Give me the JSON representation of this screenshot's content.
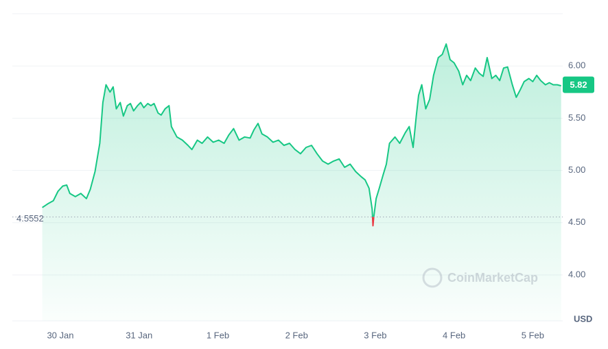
{
  "chart_data": {
    "type": "line",
    "series": [
      {
        "color": "#16c784",
        "below_color": "#ea3943",
        "x": [
          29.77,
          29.84,
          29.91,
          29.97,
          30.03,
          30.08,
          30.12,
          30.19,
          30.26,
          30.33,
          30.38,
          30.44,
          30.5,
          30.54,
          30.58,
          30.63,
          30.67,
          30.71,
          30.76,
          30.8,
          30.85,
          30.89,
          30.93,
          30.98,
          31.02,
          31.06,
          31.11,
          31.15,
          31.19,
          31.24,
          31.28,
          31.33,
          31.38,
          31.41,
          31.48,
          31.55,
          31.62,
          31.67,
          31.74,
          31.8,
          31.87,
          31.94,
          32.01,
          32.08,
          32.14,
          32.2,
          32.27,
          32.34,
          32.41,
          32.46,
          32.51,
          32.56,
          32.63,
          32.7,
          32.77,
          32.84,
          32.91,
          32.98,
          33.05,
          33.12,
          33.19,
          33.26,
          33.33,
          33.4,
          33.47,
          33.54,
          33.61,
          33.68,
          33.75,
          33.82,
          33.87,
          33.92,
          33.96,
          33.97,
          33.98,
          34.01,
          34.05,
          34.1,
          34.14,
          34.18,
          34.25,
          34.31,
          34.38,
          34.43,
          34.48,
          34.52,
          34.55,
          34.59,
          34.64,
          34.69,
          34.74,
          34.8,
          34.85,
          34.9,
          34.95,
          35.0,
          35.06,
          35.11,
          35.16,
          35.21,
          35.27,
          35.32,
          35.37,
          35.42,
          35.48,
          35.53,
          35.58,
          35.63,
          35.68,
          35.74,
          35.79,
          35.84,
          35.89,
          35.95,
          36.0,
          36.05,
          36.1,
          36.16,
          36.21,
          36.26,
          36.31,
          36.36
        ],
        "values": [
          4.645,
          4.68,
          4.71,
          4.8,
          4.85,
          4.86,
          4.78,
          4.75,
          4.78,
          4.73,
          4.82,
          4.99,
          5.26,
          5.65,
          5.82,
          5.75,
          5.8,
          5.59,
          5.65,
          5.52,
          5.62,
          5.64,
          5.57,
          5.62,
          5.65,
          5.6,
          5.64,
          5.62,
          5.64,
          5.55,
          5.53,
          5.59,
          5.62,
          5.42,
          5.32,
          5.29,
          5.24,
          5.2,
          5.29,
          5.26,
          5.32,
          5.27,
          5.29,
          5.26,
          5.34,
          5.4,
          5.29,
          5.32,
          5.31,
          5.39,
          5.45,
          5.35,
          5.32,
          5.27,
          5.29,
          5.24,
          5.26,
          5.2,
          5.16,
          5.22,
          5.24,
          5.16,
          5.09,
          5.06,
          5.09,
          5.11,
          5.03,
          5.06,
          4.99,
          4.94,
          4.91,
          4.83,
          4.63,
          4.47,
          4.55,
          4.73,
          4.83,
          4.96,
          5.06,
          5.26,
          5.32,
          5.26,
          5.36,
          5.42,
          5.22,
          5.52,
          5.72,
          5.82,
          5.59,
          5.68,
          5.91,
          6.08,
          6.11,
          6.21,
          6.06,
          6.03,
          5.95,
          5.82,
          5.91,
          5.86,
          5.98,
          5.93,
          5.9,
          6.08,
          5.88,
          5.91,
          5.86,
          5.98,
          5.99,
          5.82,
          5.7,
          5.77,
          5.85,
          5.88,
          5.85,
          5.91,
          5.86,
          5.82,
          5.84,
          5.82,
          5.82,
          5.81
        ]
      }
    ],
    "xlim": [
      29.39,
      36.38
    ],
    "xticks": [
      {
        "value": 30,
        "label": "30 Jan"
      },
      {
        "value": 31,
        "label": "31 Jan"
      },
      {
        "value": 32,
        "label": "1 Feb"
      },
      {
        "value": 33,
        "label": "2 Feb"
      },
      {
        "value": 34,
        "label": "3 Feb"
      },
      {
        "value": 35,
        "label": "4 Feb"
      },
      {
        "value": 36,
        "label": "5 Feb"
      }
    ],
    "ylim": [
      3.56,
      6.5
    ],
    "yticks": [
      {
        "value": 4,
        "label": "4.00"
      },
      {
        "value": 4.5,
        "label": "4.50"
      },
      {
        "value": 5,
        "label": "5.00"
      },
      {
        "value": 5.5,
        "label": "5.50"
      },
      {
        "value": 6,
        "label": "6.00"
      }
    ],
    "grid": true,
    "reference_value": 4.5552,
    "current_price": 5.82,
    "currency": "USD",
    "watermark": "CoinMarketCap"
  }
}
